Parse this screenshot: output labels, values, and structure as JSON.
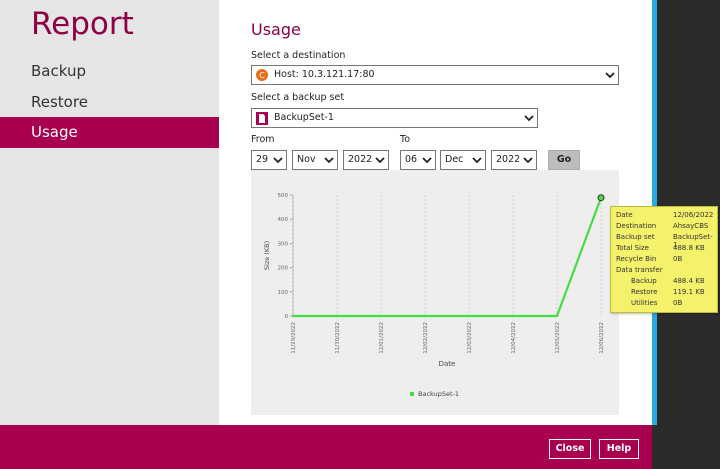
{
  "sidebar": {
    "title": "Report",
    "items": [
      {
        "label": "Backup"
      },
      {
        "label": "Restore"
      },
      {
        "label": "Usage"
      }
    ]
  },
  "main": {
    "heading": "Usage",
    "destination_label": "Select a destination",
    "destination_value": "Host: 10.3.121.17:80",
    "backupset_label": "Select a backup set",
    "backupset_value": "BackupSet-1",
    "from_label": "From",
    "to_label": "To",
    "from": {
      "day": "29",
      "month": "Nov",
      "year": "2022"
    },
    "to": {
      "day": "06",
      "month": "Dec",
      "year": "2022"
    },
    "go_label": "Go"
  },
  "chart_data": {
    "type": "line",
    "ylabel": "Size (KB)",
    "xlabel": "Date",
    "ylim": [
      0,
      500
    ],
    "yticks": [
      "0",
      "100",
      "200",
      "300",
      "400",
      "500"
    ],
    "categories": [
      "11/29/2022",
      "11/30/2022",
      "12/01/2022",
      "12/02/2022",
      "12/03/2022",
      "12/04/2022",
      "12/05/2022",
      "12/06/2022"
    ],
    "series": [
      {
        "name": "BackupSet-1",
        "values": [
          0,
          0,
          0,
          0,
          0,
          0,
          0,
          488.8
        ]
      }
    ],
    "grid": true,
    "legend": "bottom",
    "color": "#44dd44"
  },
  "tooltip": {
    "rows": [
      {
        "k": "Date",
        "v": "12/06/2022"
      },
      {
        "k": "Destination",
        "v": "AhsayCBS"
      },
      {
        "k": "Backup set",
        "v": "BackupSet-1"
      },
      {
        "k": "Total Size",
        "v": "488.8 KB"
      },
      {
        "k": "Recycle Bin",
        "v": "0B"
      },
      {
        "k": "Data transfer",
        "v": ""
      },
      {
        "k": "Backup",
        "v": "488.4 KB"
      },
      {
        "k": "Restore",
        "v": "119.1 KB"
      },
      {
        "k": "Utilities",
        "v": "0B"
      }
    ]
  },
  "footer": {
    "close_label": "Close",
    "help_label": "Help"
  },
  "colors": {
    "accent": "#a8004f",
    "title": "#8e0046",
    "line": "#44dd44",
    "tooltip": "#f4f26b"
  }
}
